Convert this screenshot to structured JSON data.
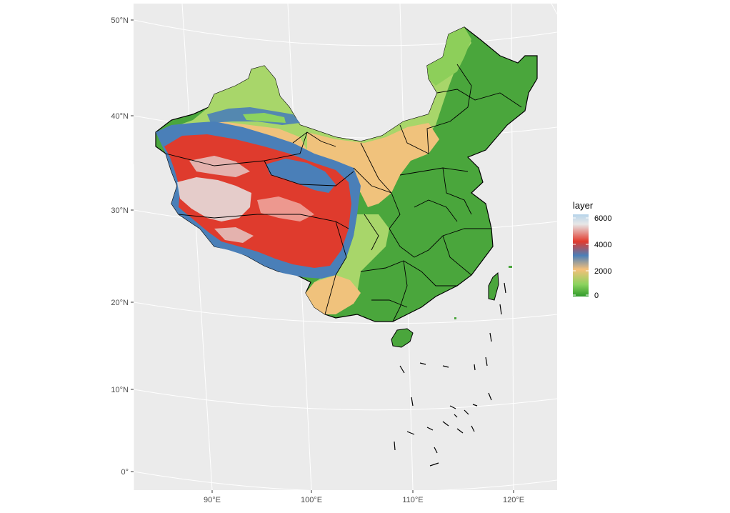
{
  "map": {
    "y_axis_labels": [
      "50°N",
      "40°N",
      "30°N",
      "20°N",
      "10°N",
      "0°"
    ],
    "x_axis_labels": [
      "90°E",
      "100°E",
      "110°E",
      "120°E"
    ]
  },
  "legend": {
    "title": "layer",
    "labels": [
      "6000",
      "4000",
      "2000",
      "0"
    ],
    "colors": [
      "#b7d4ea",
      "#e7e7e7",
      "#e23b2e",
      "#4a7fb8",
      "#f5c07a",
      "#8dd35f",
      "#2f9a2a"
    ]
  },
  "colors": {
    "panel_background": "#ebebeb",
    "grid_line": "#ffffff",
    "boundary": "#000000",
    "lowland_green": "#4aa63c",
    "plain_yellow_green": "#a8d66a",
    "plateau_tan": "#f0c27c",
    "mountain_blue": "#4a7fb8",
    "highland_red": "#df3b2d",
    "peak_white": "#e6e6e6"
  }
}
